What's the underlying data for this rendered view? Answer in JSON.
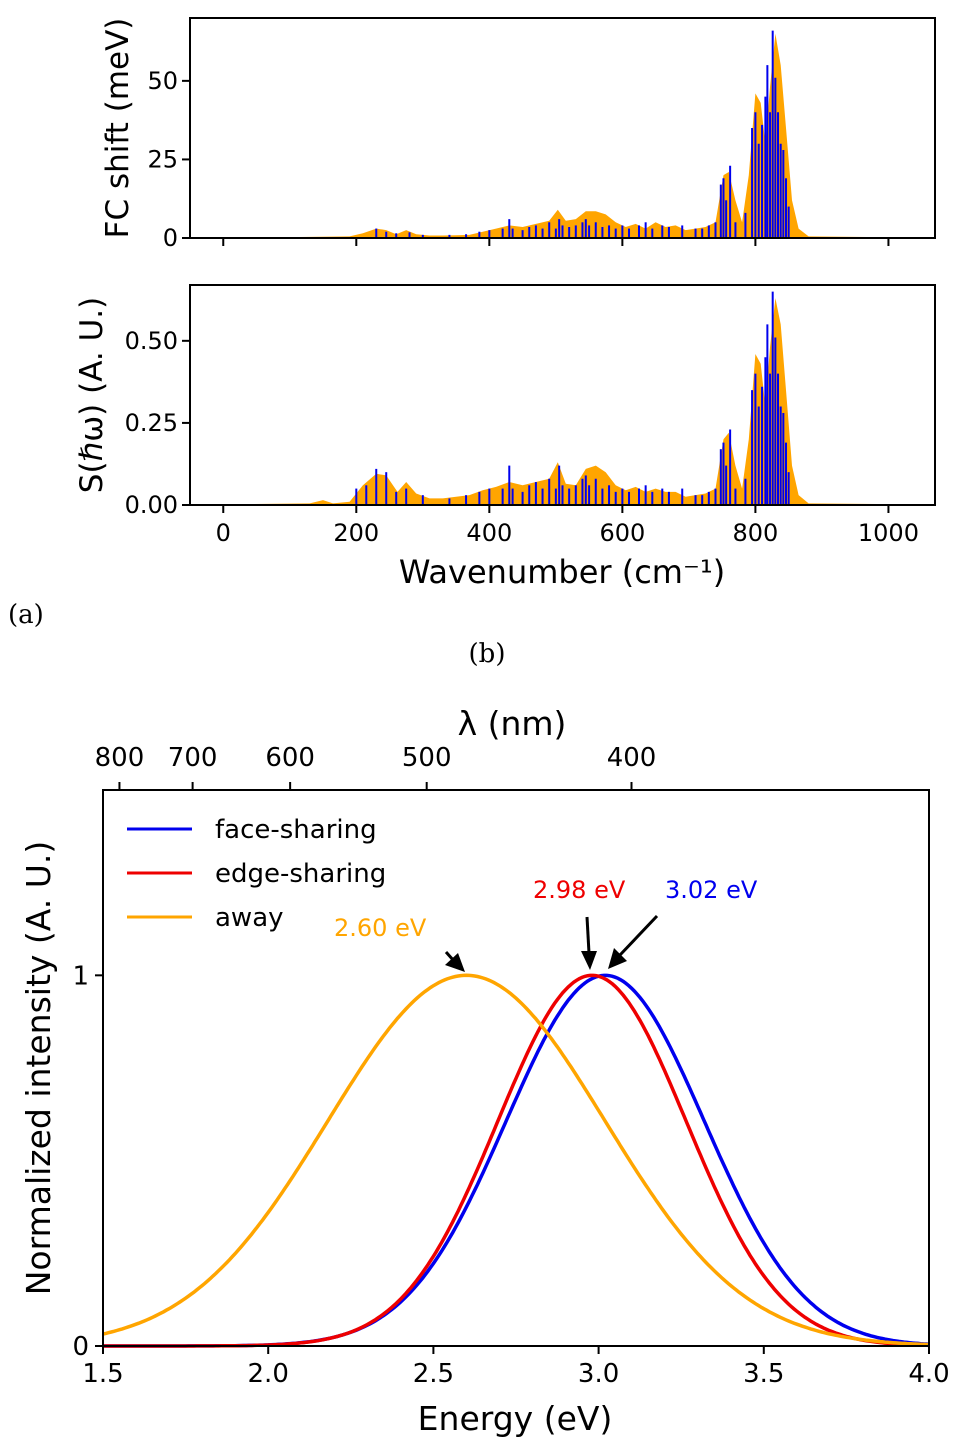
{
  "panel_labels": {
    "a": "(a)",
    "b": "(b)"
  },
  "colors": {
    "orange": "#FFA500",
    "blue": "#0000EE",
    "red": "#EE0000",
    "black": "#000000"
  },
  "chart_data": [
    {
      "id": "fc_shift",
      "type": "bar",
      "title": "",
      "xlabel": "",
      "ylabel": "FC shift (meV)",
      "xlim": [
        -50,
        1070
      ],
      "ylim": [
        0,
        70
      ],
      "xticks": [
        0,
        200,
        400,
        600,
        800,
        1000
      ],
      "xtick_labels_visible": false,
      "yticks": [
        0,
        25,
        50
      ],
      "ytick_labels": [
        "0",
        "25",
        "50"
      ],
      "grid": false,
      "series": [
        {
          "type": "area",
          "color": "#FFA500",
          "x": [
            0,
            100,
            190,
            210,
            230,
            245,
            260,
            275,
            290,
            310,
            330,
            350,
            370,
            390,
            410,
            430,
            450,
            470,
            490,
            503,
            515,
            530,
            545,
            560,
            575,
            590,
            605,
            620,
            635,
            650,
            665,
            680,
            695,
            710,
            725,
            740,
            752,
            760,
            770,
            780,
            790,
            800,
            808,
            815,
            822,
            830,
            838,
            846,
            855,
            865,
            880,
            1020
          ],
          "y": [
            0.2,
            0.3,
            0.5,
            1.5,
            3,
            2.5,
            1.2,
            2.5,
            1.2,
            0.8,
            0.8,
            0.9,
            1.0,
            2.0,
            3.0,
            4.0,
            3.5,
            4.5,
            5.5,
            9,
            5.5,
            6,
            8.5,
            8.5,
            7.5,
            5,
            3.5,
            4.5,
            3,
            5,
            3.5,
            4,
            2.5,
            3,
            3.5,
            5,
            20,
            21,
            12,
            5,
            20,
            46,
            43,
            30,
            48,
            65,
            55,
            35,
            12,
            3,
            0.5,
            0.2
          ]
        },
        {
          "type": "sticks",
          "color": "#0000EE",
          "x": [
            230,
            245,
            260,
            280,
            300,
            340,
            365,
            385,
            400,
            420,
            430,
            435,
            450,
            460,
            470,
            480,
            490,
            500,
            505,
            510,
            520,
            530,
            540,
            545,
            550,
            560,
            570,
            580,
            590,
            600,
            610,
            625,
            635,
            645,
            660,
            670,
            690,
            710,
            720,
            730,
            740,
            748,
            752,
            756,
            762,
            770,
            785,
            795,
            800,
            805,
            810,
            815,
            818,
            822,
            826,
            830,
            834,
            838,
            842,
            846,
            850
          ],
          "y": [
            3,
            2,
            1.5,
            1.8,
            1,
            1,
            1.2,
            2,
            2.5,
            3,
            6,
            3,
            2.5,
            3.5,
            4,
            3,
            5,
            3,
            6,
            4,
            3.5,
            4,
            5,
            6,
            4,
            5,
            3.5,
            4,
            3,
            4,
            3,
            4,
            5,
            3,
            4,
            3.5,
            4,
            3,
            3,
            4,
            5,
            17,
            19,
            12,
            23,
            5,
            8,
            35,
            40,
            30,
            36,
            45,
            55,
            40,
            66,
            51,
            40,
            30,
            28,
            19,
            10
          ]
        }
      ]
    },
    {
      "id": "huang_rhys",
      "type": "bar",
      "title": "",
      "xlabel": "Wavenumber (cm⁻¹)",
      "ylabel": "S(ℏω) (A. U.)",
      "xlim": [
        -50,
        1070
      ],
      "ylim": [
        0,
        0.67
      ],
      "xticks": [
        0,
        200,
        400,
        600,
        800,
        1000
      ],
      "xtick_labels": [
        "0",
        "200",
        "400",
        "600",
        "800",
        "1000"
      ],
      "yticks": [
        0,
        0.25,
        0.5
      ],
      "ytick_labels": [
        "0.00",
        "0.25",
        "0.50"
      ],
      "grid": false,
      "series": [
        {
          "type": "area",
          "color": "#FFA500",
          "x": [
            0,
            130,
            150,
            165,
            190,
            210,
            230,
            245,
            262,
            275,
            290,
            310,
            330,
            350,
            370,
            390,
            410,
            430,
            450,
            470,
            490,
            503,
            515,
            530,
            545,
            560,
            575,
            590,
            605,
            620,
            635,
            650,
            665,
            680,
            695,
            710,
            725,
            740,
            752,
            760,
            770,
            780,
            790,
            800,
            808,
            815,
            822,
            830,
            838,
            846,
            855,
            865,
            880,
            1020
          ],
          "y": [
            0.002,
            0.005,
            0.015,
            0.005,
            0.01,
            0.06,
            0.095,
            0.09,
            0.04,
            0.07,
            0.035,
            0.02,
            0.02,
            0.025,
            0.03,
            0.045,
            0.055,
            0.07,
            0.06,
            0.07,
            0.08,
            0.13,
            0.065,
            0.06,
            0.11,
            0.12,
            0.1,
            0.06,
            0.045,
            0.055,
            0.04,
            0.05,
            0.04,
            0.04,
            0.025,
            0.03,
            0.035,
            0.05,
            0.2,
            0.22,
            0.12,
            0.05,
            0.2,
            0.46,
            0.43,
            0.3,
            0.48,
            0.63,
            0.55,
            0.35,
            0.12,
            0.03,
            0.005,
            0.002
          ]
        },
        {
          "type": "sticks",
          "color": "#0000EE",
          "x": [
            200,
            215,
            230,
            245,
            260,
            275,
            300,
            340,
            365,
            385,
            400,
            420,
            430,
            435,
            450,
            460,
            470,
            480,
            490,
            500,
            505,
            510,
            520,
            530,
            540,
            545,
            550,
            560,
            570,
            580,
            590,
            600,
            610,
            625,
            635,
            645,
            660,
            670,
            690,
            710,
            720,
            730,
            740,
            748,
            752,
            756,
            762,
            770,
            785,
            795,
            800,
            805,
            810,
            815,
            818,
            822,
            826,
            830,
            834,
            838,
            842,
            846,
            850
          ],
          "y": [
            0.05,
            0.06,
            0.11,
            0.1,
            0.04,
            0.05,
            0.03,
            0.02,
            0.03,
            0.04,
            0.05,
            0.05,
            0.12,
            0.05,
            0.04,
            0.06,
            0.07,
            0.05,
            0.08,
            0.05,
            0.12,
            0.06,
            0.05,
            0.06,
            0.08,
            0.09,
            0.06,
            0.08,
            0.05,
            0.06,
            0.04,
            0.05,
            0.04,
            0.05,
            0.06,
            0.04,
            0.05,
            0.04,
            0.05,
            0.03,
            0.03,
            0.04,
            0.05,
            0.17,
            0.19,
            0.12,
            0.23,
            0.05,
            0.08,
            0.35,
            0.4,
            0.3,
            0.36,
            0.45,
            0.55,
            0.4,
            0.65,
            0.51,
            0.4,
            0.3,
            0.28,
            0.19,
            0.1
          ]
        }
      ]
    },
    {
      "id": "luminescence",
      "type": "line",
      "title": "",
      "xlabel": "Energy (eV)",
      "ylabel": "Normalized intensity (A. U.)",
      "top_xlabel": "λ (nm)",
      "top_xticks_nm": [
        800,
        700,
        600,
        500,
        400
      ],
      "top_xtick_labels": [
        "800",
        "700",
        "600",
        "500",
        "400"
      ],
      "xlim": [
        1.5,
        4.0
      ],
      "ylim": [
        0,
        1.5
      ],
      "xticks": [
        1.5,
        2.0,
        2.5,
        3.0,
        3.5,
        4.0
      ],
      "xtick_labels": [
        "1.5",
        "2.0",
        "2.5",
        "3.0",
        "3.5",
        "4.0"
      ],
      "yticks": [
        0,
        1
      ],
      "ytick_labels": [
        "0",
        "1"
      ],
      "grid": false,
      "legend_position": "top-left",
      "series": [
        {
          "name": "face-sharing",
          "color": "#0000EE",
          "peak": 3.02,
          "sigma": 0.3
        },
        {
          "name": "edge-sharing",
          "color": "#EE0000",
          "peak": 2.98,
          "sigma": 0.285
        },
        {
          "name": "away",
          "color": "#FFA500",
          "peak": 2.6,
          "sigma": 0.42
        }
      ],
      "annotations": [
        {
          "text": "3.02 eV",
          "color": "#0000EE",
          "x": 3.02,
          "y": 1.0
        },
        {
          "text": "2.98 eV",
          "color": "#EE0000",
          "x": 2.98,
          "y": 1.0
        },
        {
          "text": "2.60 eV",
          "color": "#FFA500",
          "x": 2.6,
          "y": 1.0
        }
      ]
    }
  ]
}
